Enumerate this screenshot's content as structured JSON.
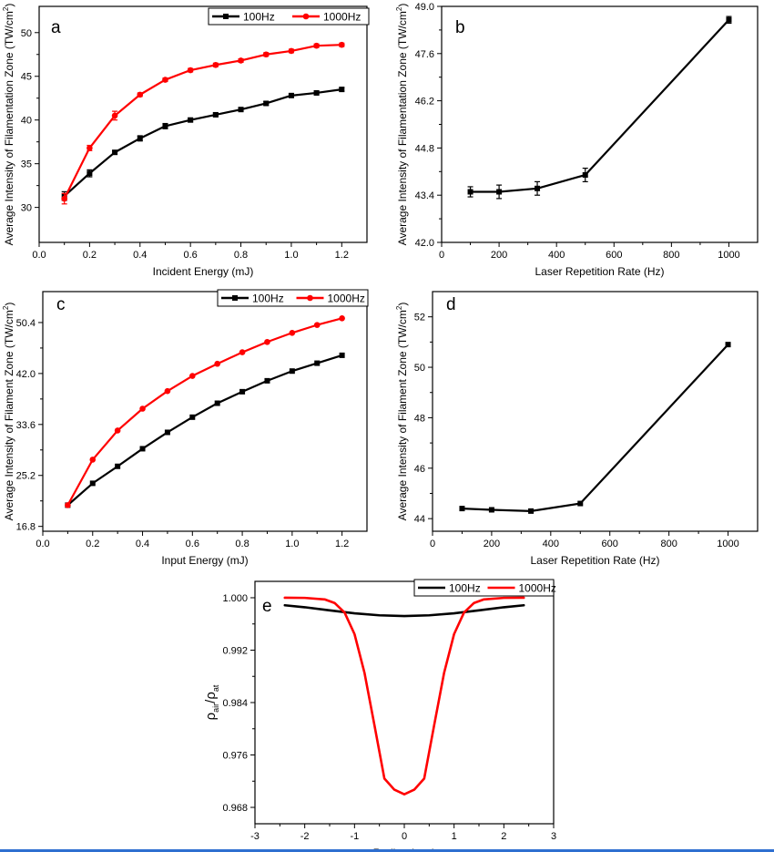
{
  "chart_data": [
    {
      "id": "a",
      "panel_label": "a",
      "type": "line",
      "xlabel": "Incident Energy (mJ)",
      "ylabel": "Average Intensity of Filamentation Zone (TW/cm",
      "ylabel_sup": "2",
      "ylabel_tail": ")",
      "xlim": [
        0,
        1.3
      ],
      "ylim": [
        26,
        53
      ],
      "xticks": [
        "0.0",
        "0.2",
        "0.4",
        "0.6",
        "0.8",
        "1.0",
        "1.2"
      ],
      "xtick_values": [
        0,
        0.2,
        0.4,
        0.6,
        0.8,
        1.0,
        1.2
      ],
      "yticks": [
        "30",
        "35",
        "40",
        "45",
        "50"
      ],
      "ytick_values": [
        30,
        35,
        40,
        45,
        50
      ],
      "x": [
        0.1,
        0.2,
        0.3,
        0.4,
        0.5,
        0.6,
        0.7,
        0.8,
        0.9,
        1.0,
        1.1,
        1.2
      ],
      "legend": "top-right",
      "series": [
        {
          "name": "100Hz",
          "color": "#000000",
          "marker": "square",
          "values": [
            31.3,
            33.9,
            36.3,
            37.9,
            39.3,
            40.0,
            40.6,
            41.2,
            41.9,
            42.8,
            43.1,
            43.5
          ],
          "errors": [
            0.5,
            0.4,
            0.2,
            0.3,
            0.3,
            0.2,
            0.2,
            0.2,
            0.2,
            0.2,
            0.2,
            0.2
          ]
        },
        {
          "name": "1000Hz",
          "color": "#ff0000",
          "marker": "circle",
          "values": [
            31.0,
            36.8,
            40.5,
            42.9,
            44.6,
            45.7,
            46.3,
            46.8,
            47.5,
            47.9,
            48.5,
            48.6
          ],
          "errors": [
            0.6,
            0.3,
            0.5,
            0.2,
            0.2,
            0.2,
            0.2,
            0.2,
            0.2,
            0.2,
            0.2,
            0.2
          ]
        }
      ]
    },
    {
      "id": "b",
      "panel_label": "b",
      "type": "line",
      "xlabel": "Laser Repetition Rate (Hz)",
      "ylabel": "Average Intensity of Filamentation Zone (TW/cm",
      "ylabel_sup": "2",
      "ylabel_tail": ")",
      "xlim": [
        0,
        1100
      ],
      "ylim": [
        42.0,
        49.0
      ],
      "xticks": [
        "0",
        "200",
        "400",
        "600",
        "800",
        "1000"
      ],
      "xtick_values": [
        0,
        200,
        400,
        600,
        800,
        1000
      ],
      "yticks": [
        "42.0",
        "43.4",
        "44.8",
        "46.2",
        "47.6",
        "49.0"
      ],
      "ytick_values": [
        42.0,
        43.4,
        44.8,
        46.2,
        47.6,
        49.0
      ],
      "x": [
        100,
        200,
        333,
        500,
        1000
      ],
      "series": [
        {
          "color": "#000000",
          "marker": "square",
          "values": [
            43.5,
            43.5,
            43.6,
            44.0,
            48.6
          ],
          "errors": [
            0.15,
            0.2,
            0.2,
            0.2,
            0.1
          ]
        }
      ]
    },
    {
      "id": "c",
      "panel_label": "c",
      "type": "line",
      "xlabel": "Input Energy (mJ)",
      "ylabel": "Average Intensity of Filament Zone (TW/cm",
      "ylabel_sup": "2",
      "ylabel_tail": ")",
      "xlim": [
        0,
        1.3
      ],
      "ylim": [
        16.0,
        55.5
      ],
      "xticks": [
        "0.0",
        "0.2",
        "0.4",
        "0.6",
        "0.8",
        "1.0",
        "1.2"
      ],
      "xtick_values": [
        0,
        0.2,
        0.4,
        0.6,
        0.8,
        1.0,
        1.2
      ],
      "yticks": [
        "16.8",
        "25.2",
        "33.6",
        "42.0",
        "50.4"
      ],
      "ytick_values": [
        16.8,
        25.2,
        33.6,
        42.0,
        50.4
      ],
      "x": [
        0.1,
        0.2,
        0.3,
        0.4,
        0.5,
        0.6,
        0.7,
        0.8,
        0.9,
        1.0,
        1.1,
        1.2
      ],
      "legend": "top-right",
      "series": [
        {
          "name": "100Hz",
          "color": "#000000",
          "marker": "square",
          "values": [
            20.3,
            23.9,
            26.7,
            29.6,
            32.3,
            34.8,
            37.1,
            39.0,
            40.8,
            42.4,
            43.7,
            45.0
          ]
        },
        {
          "name": "1000Hz",
          "color": "#ff0000",
          "marker": "circle",
          "values": [
            20.3,
            27.8,
            32.6,
            36.2,
            39.1,
            41.6,
            43.6,
            45.5,
            47.2,
            48.7,
            50.0,
            51.1
          ]
        }
      ]
    },
    {
      "id": "d",
      "panel_label": "d",
      "type": "line",
      "xlabel": "Laser Repetition Rate (Hz)",
      "ylabel": "Average Intensity of Filament Zone (TW/cm",
      "ylabel_sup": "2",
      "ylabel_tail": ")",
      "xlim": [
        0,
        1100
      ],
      "ylim": [
        43.5,
        53.0
      ],
      "xticks": [
        "0",
        "200",
        "400",
        "600",
        "800",
        "1000"
      ],
      "xtick_values": [
        0,
        200,
        400,
        600,
        800,
        1000
      ],
      "yticks": [
        "44",
        "46",
        "48",
        "50",
        "52"
      ],
      "ytick_values": [
        44,
        46,
        48,
        50,
        52
      ],
      "x": [
        100,
        200,
        333,
        500,
        1000
      ],
      "series": [
        {
          "color": "#000000",
          "marker": "square",
          "values": [
            44.4,
            44.35,
            44.3,
            44.6,
            50.9
          ]
        }
      ]
    },
    {
      "id": "e",
      "panel_label": "e",
      "type": "line",
      "xlabel": "Radius (mm)",
      "ylabel": "ρ",
      "ylabel_sub": "air",
      "ylabel_mid": "/ρ",
      "ylabel_sub2": "at",
      "xlim": [
        -3,
        3
      ],
      "ylim": [
        0.9655,
        1.0025
      ],
      "xticks": [
        "-3",
        "-2",
        "-1",
        "0",
        "1",
        "2",
        "3"
      ],
      "xtick_values": [
        -3,
        -2,
        -1,
        0,
        1,
        2,
        3
      ],
      "yticks": [
        "0.968",
        "0.976",
        "0.984",
        "0.992",
        "1.000"
      ],
      "ytick_values": [
        0.968,
        0.976,
        0.984,
        0.992,
        1.0
      ],
      "legend": "top-right",
      "series": [
        {
          "name": "100Hz",
          "color": "#000000",
          "marker": "none",
          "x": [
            -2.4,
            -2.0,
            -1.5,
            -1.0,
            -0.5,
            0.0,
            0.5,
            1.0,
            1.5,
            2.0,
            2.4
          ],
          "values": [
            0.99885,
            0.99855,
            0.99808,
            0.99762,
            0.99732,
            0.9972,
            0.99732,
            0.99762,
            0.99808,
            0.99855,
            0.99885
          ]
        },
        {
          "name": "1000Hz",
          "color": "#ff0000",
          "marker": "none",
          "x": [
            -2.4,
            -2.0,
            -1.6,
            -1.4,
            -1.2,
            -1.0,
            -0.8,
            -0.6,
            -0.4,
            -0.2,
            0.0,
            0.2,
            0.4,
            0.6,
            0.8,
            1.0,
            1.2,
            1.4,
            1.6,
            2.0,
            2.4
          ],
          "values": [
            1.0,
            0.99998,
            0.99975,
            0.9992,
            0.99775,
            0.99445,
            0.98855,
            0.98055,
            0.9724,
            0.9707,
            0.97,
            0.9707,
            0.9724,
            0.98055,
            0.98855,
            0.99445,
            0.99775,
            0.9992,
            0.99975,
            0.99998,
            1.0
          ]
        }
      ]
    }
  ]
}
